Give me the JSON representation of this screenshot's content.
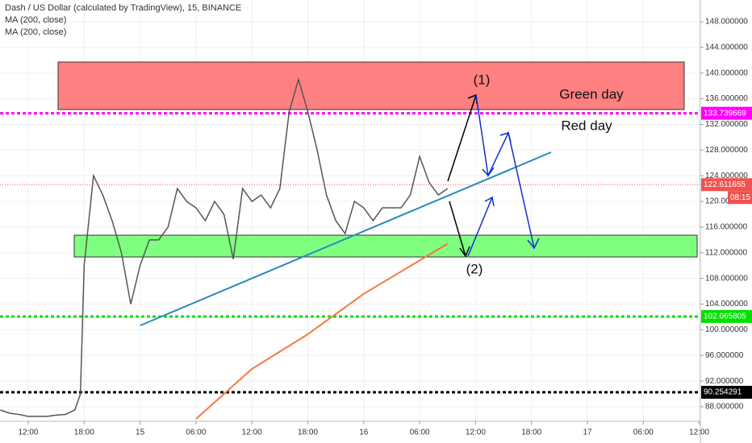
{
  "chart_data": {
    "type": "line",
    "title": "Dash / US Dollar (calculated by TradingView), 15, BINANCE",
    "studies": [
      "MA (200, close)",
      "MA (200, close)"
    ],
    "annotations": [
      "(1)",
      "Green day",
      "Red day",
      "(2)"
    ],
    "countdown": "08:15",
    "xlim": [
      -3.03,
      72.12
    ],
    "ylim": [
      85.74,
      151.39
    ],
    "xticks": [
      {
        "value": 0,
        "label": "12:00"
      },
      {
        "value": 6,
        "label": "18:00"
      },
      {
        "value": 12,
        "label": "15"
      },
      {
        "value": 18,
        "label": "06:00"
      },
      {
        "value": 24,
        "label": "12:00"
      },
      {
        "value": 30,
        "label": "18:00"
      },
      {
        "value": 36,
        "label": "16"
      },
      {
        "value": 42,
        "label": "06:00"
      },
      {
        "value": 48,
        "label": "12:00"
      },
      {
        "value": 54,
        "label": "18:00"
      },
      {
        "value": 60,
        "label": "17"
      },
      {
        "value": 66,
        "label": "06:00"
      },
      {
        "value": 72,
        "label": "12:00"
      }
    ],
    "yticks": [
      {
        "value": 88,
        "label": "88.000000"
      },
      {
        "value": 92,
        "label": "92.000000"
      },
      {
        "value": 96,
        "label": "96.000000"
      },
      {
        "value": 100,
        "label": "100.000000"
      },
      {
        "value": 104,
        "label": "104.000000"
      },
      {
        "value": 108,
        "label": "108.000000"
      },
      {
        "value": 112,
        "label": "112.000000"
      },
      {
        "value": 116,
        "label": "116.000000"
      },
      {
        "value": 120,
        "label": "120.000000"
      },
      {
        "value": 124,
        "label": "124.000000"
      },
      {
        "value": 128,
        "label": "128.000000"
      },
      {
        "value": 132,
        "label": "132.000000"
      },
      {
        "value": 136,
        "label": "136.000000"
      },
      {
        "value": 140,
        "label": "140.000000"
      },
      {
        "value": 144,
        "label": "144.000000"
      },
      {
        "value": 148,
        "label": "148.000000"
      }
    ],
    "levels": [
      {
        "value": 133.739669,
        "color": "#ff00ff"
      },
      {
        "value": 102.065805,
        "color": "#00e000"
      },
      {
        "value": 90.254291,
        "color": "#000000"
      },
      {
        "value": 122.611655,
        "color": "#ef5350"
      }
    ],
    "series": [
      {
        "color": "#555555",
        "x": [
          -3,
          -2,
          -1,
          0,
          1,
          2,
          3,
          4,
          5,
          5.6,
          6,
          7,
          8,
          9,
          10,
          11,
          12,
          13,
          14,
          15,
          16,
          17,
          18,
          19,
          20,
          21,
          22,
          23,
          24,
          25,
          26,
          27,
          28,
          29,
          30,
          31,
          32,
          33,
          34,
          35,
          36,
          37,
          38,
          39,
          40,
          41,
          42,
          43,
          44,
          45
        ],
        "values": [
          87.5,
          87,
          86.8,
          86.5,
          86.5,
          86.5,
          86.7,
          86.8,
          87.5,
          90,
          110,
          124,
          121,
          117,
          112,
          104,
          110,
          114,
          114,
          116,
          122,
          120,
          119,
          117,
          120,
          118,
          111,
          122,
          120,
          121,
          119,
          122,
          134,
          139,
          134,
          128,
          121,
          117,
          115,
          120,
          119,
          117,
          119,
          119,
          119,
          121,
          127,
          123,
          121,
          122
        ]
      },
      {
        "color": "#f4783c",
        "x": [
          18,
          24,
          30,
          36,
          45
        ],
        "values": [
          86.1,
          93.9,
          99.3,
          105.6,
          113.4
        ]
      }
    ]
  }
}
